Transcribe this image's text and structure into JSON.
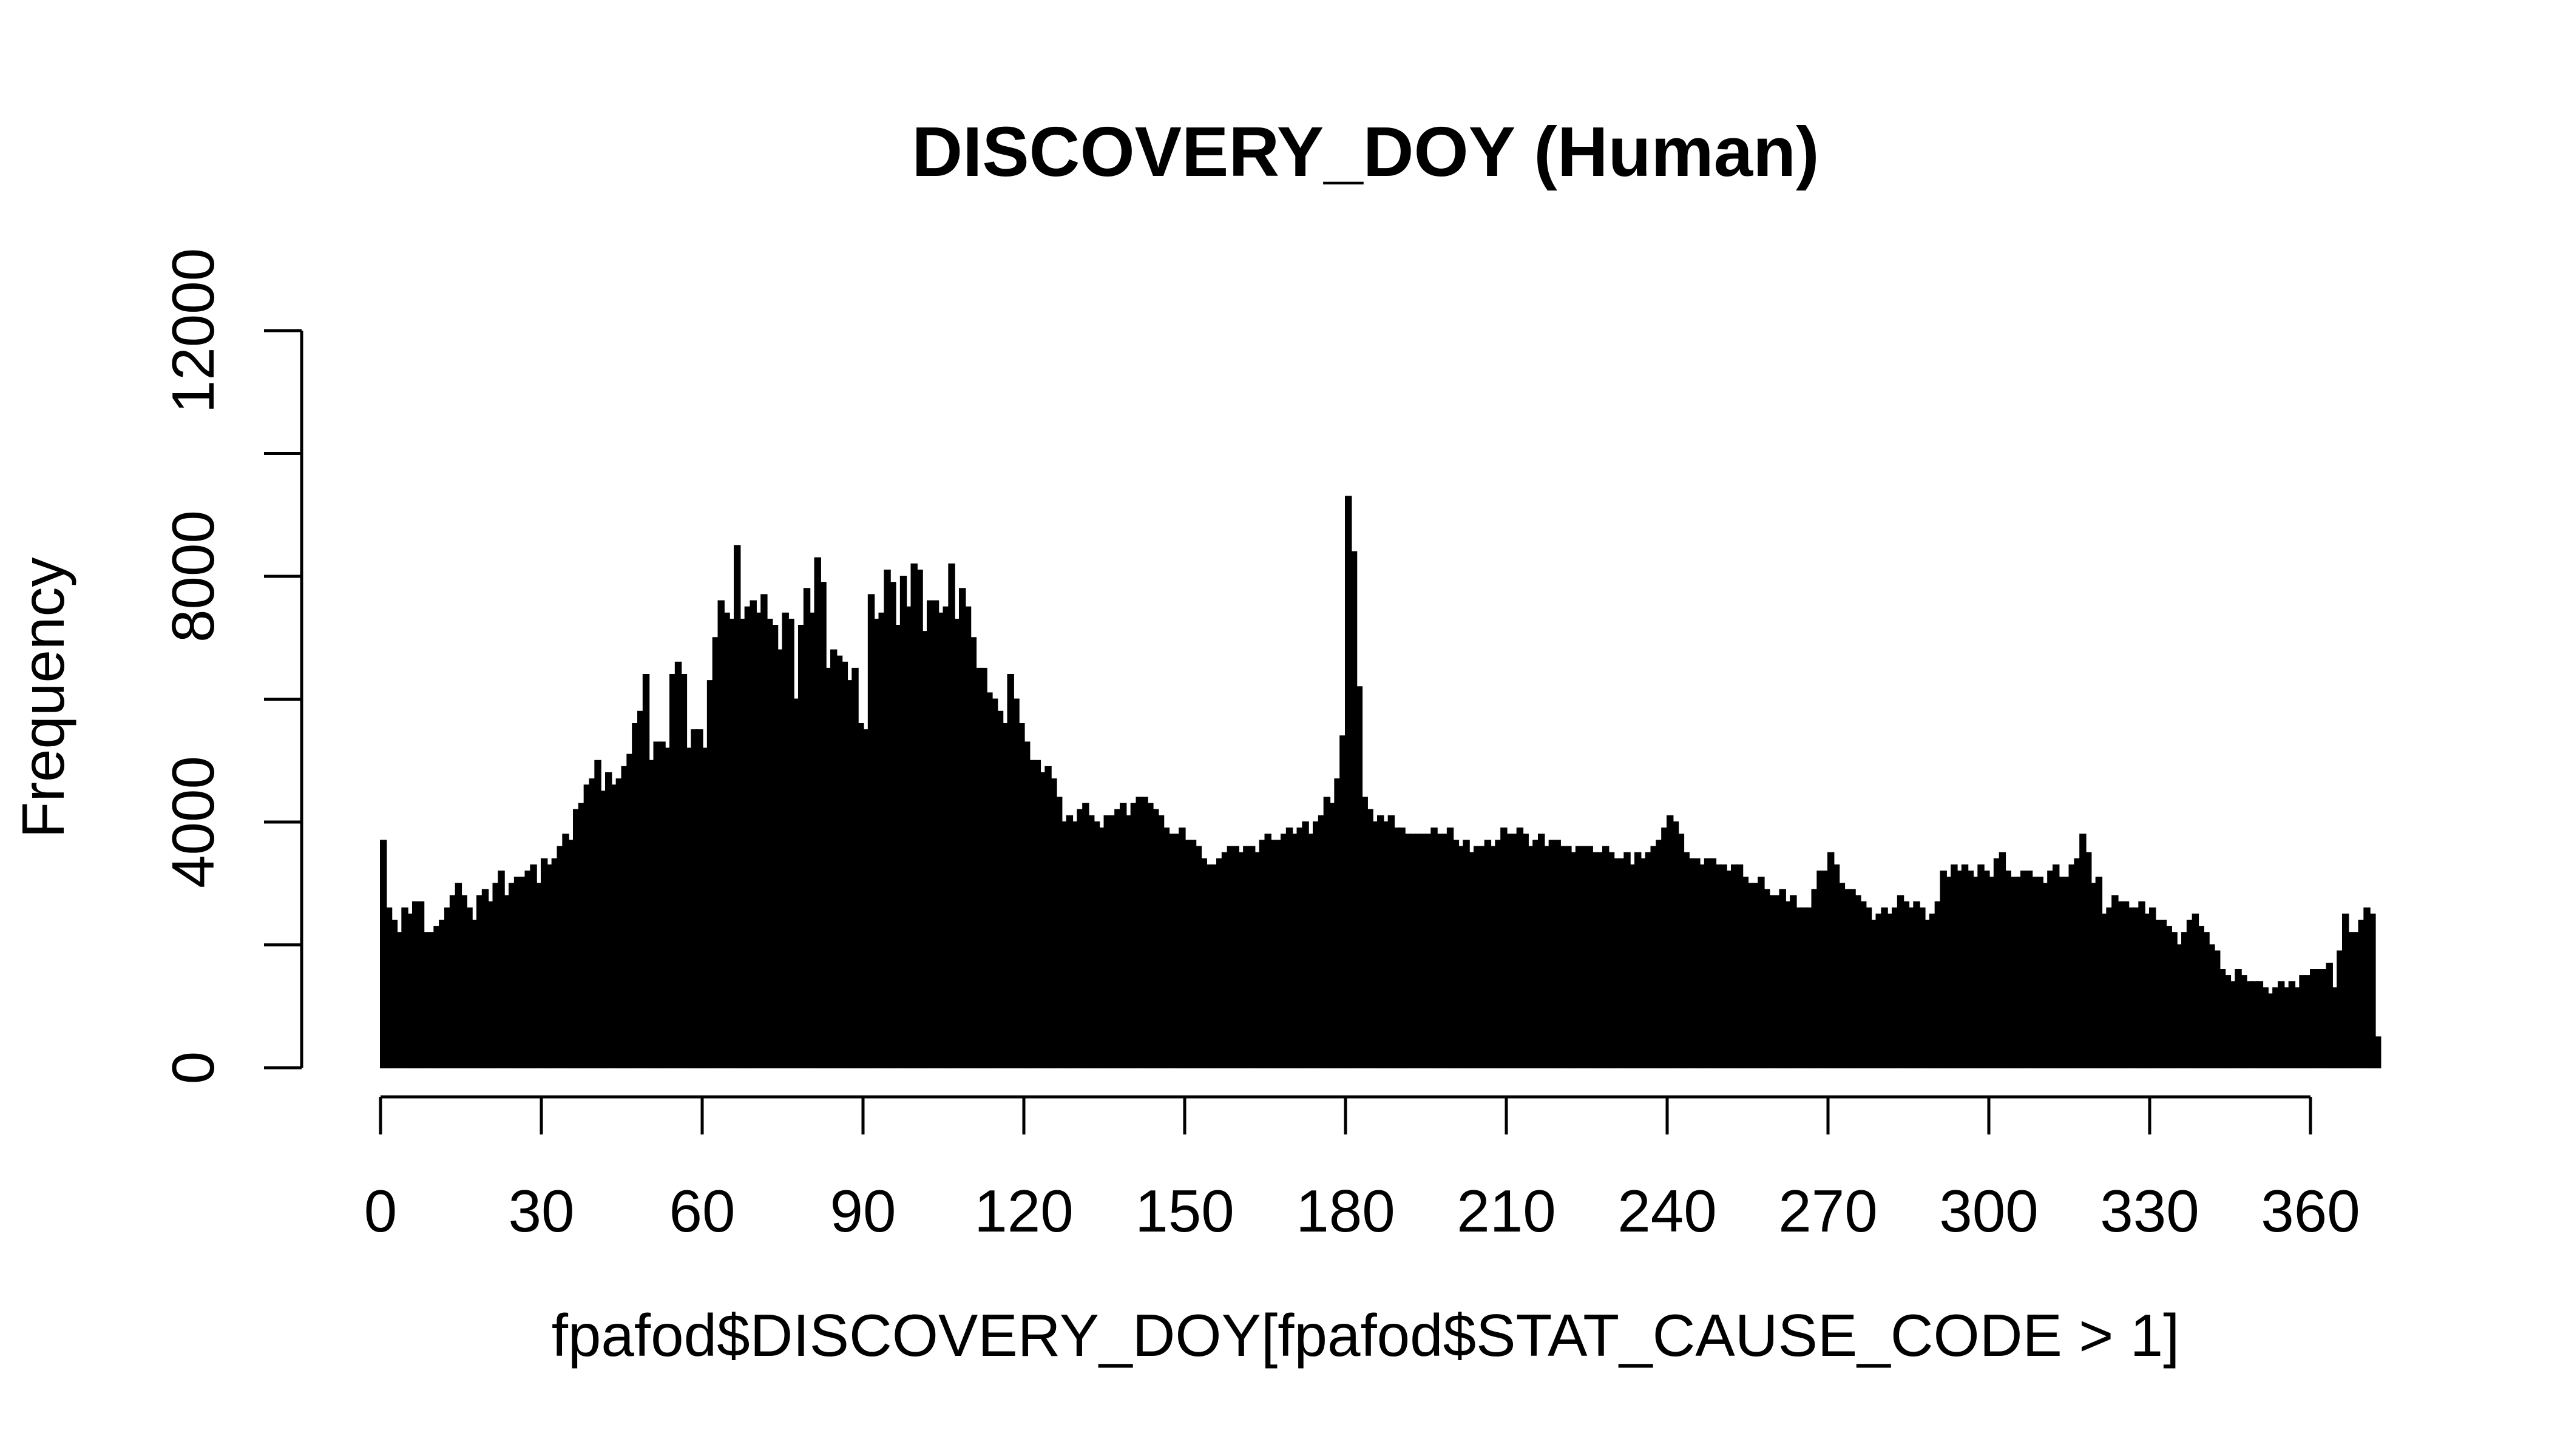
{
  "chart_data": {
    "type": "bar",
    "title": "DISCOVERY_DOY (Human)",
    "xlabel": "fpafod$DISCOVERY_DOY[fpafod$STAT_CAUSE_CODE > 1]",
    "ylabel": "Frequency",
    "xlim": [
      0,
      366
    ],
    "ylim": [
      0,
      12000
    ],
    "x_ticks": [
      0,
      30,
      60,
      90,
      120,
      150,
      180,
      210,
      240,
      270,
      300,
      330,
      360
    ],
    "y_ticks": [
      0,
      4000,
      8000,
      12000
    ],
    "grid": false,
    "legend": "none",
    "bar_color": "#000000",
    "x_start": 1,
    "values": [
      3700,
      2600,
      2400,
      2200,
      2600,
      2500,
      2700,
      2700,
      2200,
      2200,
      2300,
      2400,
      2600,
      2800,
      3000,
      2800,
      2600,
      2400,
      2800,
      2900,
      2700,
      3000,
      3200,
      2800,
      3000,
      3100,
      3100,
      3200,
      3300,
      3000,
      3400,
      3300,
      3400,
      3600,
      3800,
      3700,
      4200,
      4300,
      4600,
      4700,
      5000,
      4500,
      4800,
      4600,
      4700,
      4900,
      5100,
      5600,
      5800,
      6400,
      5000,
      5300,
      5300,
      5200,
      6400,
      6600,
      6400,
      5200,
      5500,
      5500,
      5200,
      6300,
      7000,
      7600,
      7400,
      7300,
      8500,
      7300,
      7500,
      7600,
      7400,
      7700,
      7300,
      7200,
      6800,
      7400,
      7300,
      6000,
      7200,
      7800,
      7400,
      8300,
      7900,
      6500,
      6800,
      6700,
      6600,
      6300,
      6500,
      5600,
      5500,
      7700,
      7300,
      7400,
      8100,
      7900,
      7200,
      8000,
      7500,
      8200,
      8100,
      7100,
      7600,
      7600,
      7400,
      7500,
      8200,
      7300,
      7800,
      7500,
      7000,
      6500,
      6500,
      6100,
      6000,
      5800,
      5600,
      6400,
      6000,
      5600,
      5300,
      5000,
      5000,
      4800,
      4900,
      4700,
      4400,
      4000,
      4100,
      4000,
      4200,
      4300,
      4100,
      4000,
      3900,
      4100,
      4100,
      4200,
      4300,
      4100,
      4300,
      4400,
      4400,
      4300,
      4200,
      4100,
      3900,
      3800,
      3800,
      3900,
      3700,
      3700,
      3600,
      3400,
      3300,
      3300,
      3400,
      3500,
      3600,
      3600,
      3500,
      3600,
      3600,
      3500,
      3700,
      3800,
      3700,
      3700,
      3800,
      3900,
      3800,
      3900,
      4000,
      3800,
      4000,
      4100,
      4400,
      4300,
      4700,
      5400,
      9300,
      8400,
      6200,
      4400,
      4200,
      4000,
      4100,
      4000,
      4100,
      3900,
      3900,
      3800,
      3800,
      3800,
      3800,
      3800,
      3900,
      3800,
      3800,
      3900,
      3700,
      3600,
      3700,
      3500,
      3600,
      3600,
      3700,
      3600,
      3700,
      3900,
      3800,
      3800,
      3900,
      3800,
      3600,
      3700,
      3800,
      3600,
      3700,
      3700,
      3600,
      3600,
      3500,
      3600,
      3600,
      3600,
      3500,
      3500,
      3600,
      3500,
      3400,
      3400,
      3500,
      3300,
      3500,
      3400,
      3500,
      3600,
      3700,
      3900,
      4100,
      4000,
      3800,
      3500,
      3400,
      3400,
      3300,
      3400,
      3400,
      3300,
      3300,
      3200,
      3300,
      3300,
      3100,
      3000,
      3000,
      3100,
      2900,
      2800,
      2800,
      2900,
      2700,
      2800,
      2600,
      2600,
      2600,
      2900,
      3200,
      3200,
      3500,
      3300,
      3000,
      2900,
      2900,
      2800,
      2700,
      2600,
      2400,
      2500,
      2600,
      2500,
      2600,
      2800,
      2700,
      2600,
      2700,
      2600,
      2400,
      2500,
      2700,
      3200,
      3100,
      3300,
      3200,
      3300,
      3200,
      3100,
      3300,
      3200,
      3100,
      3400,
      3500,
      3200,
      3100,
      3100,
      3200,
      3200,
      3100,
      3100,
      3000,
      3200,
      3300,
      3100,
      3100,
      3300,
      3400,
      3800,
      3500,
      3000,
      3100,
      2500,
      2600,
      2800,
      2700,
      2700,
      2600,
      2600,
      2700,
      2500,
      2600,
      2400,
      2400,
      2300,
      2200,
      2000,
      2200,
      2400,
      2500,
      2300,
      2200,
      2000,
      1900,
      1600,
      1500,
      1400,
      1600,
      1500,
      1400,
      1400,
      1400,
      1300,
      1200,
      1300,
      1400,
      1300,
      1400,
      1300,
      1500,
      1500,
      1600,
      1600,
      1600,
      1700,
      1300,
      1900,
      2500,
      2200,
      2200,
      2400,
      2600,
      2500,
      500
    ]
  }
}
